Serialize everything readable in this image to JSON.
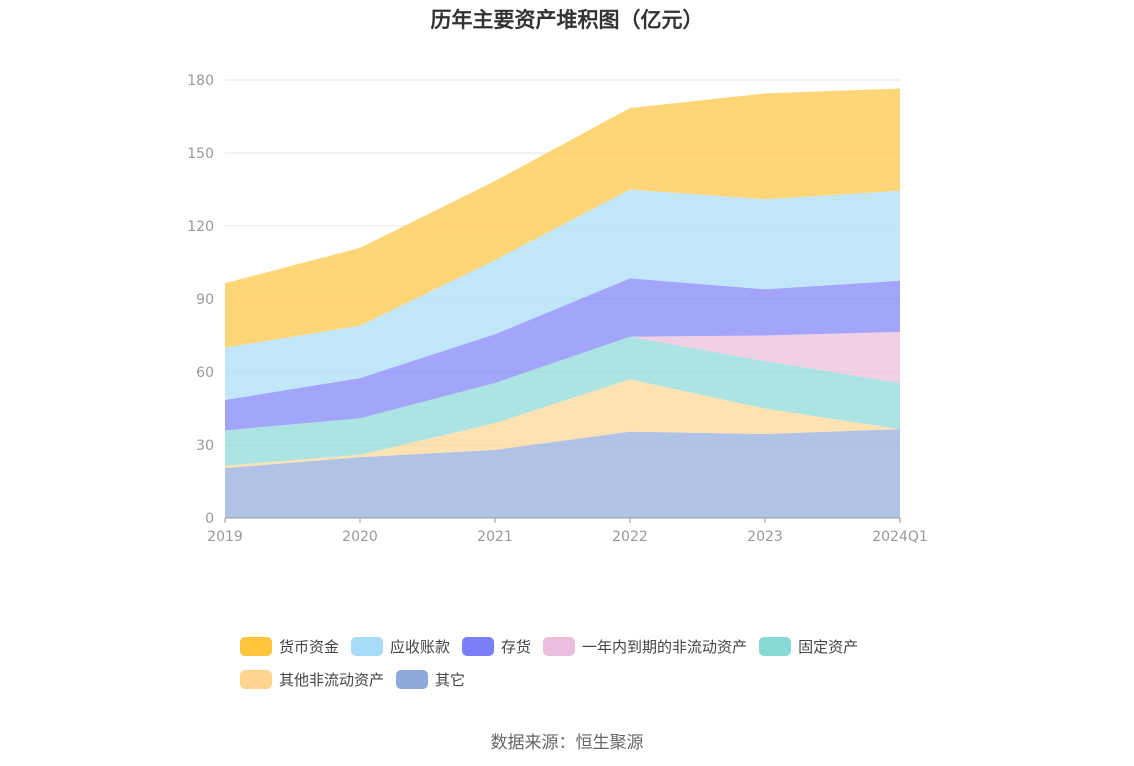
{
  "chart_data": {
    "type": "area",
    "stacked": true,
    "title": "历年主要资产堆积图（亿元）",
    "categories": [
      "2019",
      "2020",
      "2021",
      "2022",
      "2023",
      "2024Q1"
    ],
    "ylim": [
      0,
      180
    ],
    "yticks": [
      "0",
      "30",
      "60",
      "90",
      "120",
      "150",
      "180"
    ],
    "grid": true,
    "legend_position": "bottom",
    "series": [
      {
        "name": "其它",
        "color": "#8eaadb",
        "values": [
          20.5,
          25,
          28,
          35.5,
          34.5,
          36.5
        ]
      },
      {
        "name": "其他非流动资产",
        "color": "#ffd591",
        "values": [
          1,
          1,
          11,
          21.5,
          10.5,
          0
        ]
      },
      {
        "name": "固定资产",
        "color": "#87d9d6",
        "values": [
          14.5,
          15,
          16.5,
          17.5,
          19.5,
          19
        ]
      },
      {
        "name": "一年内到期的非流动资产",
        "color": "#ebbcdb",
        "values": [
          0,
          0,
          0,
          0,
          10.5,
          21
        ]
      },
      {
        "name": "存货",
        "color": "#7b7ff7",
        "values": [
          12.5,
          16.5,
          20,
          24,
          19,
          21
        ]
      },
      {
        "name": "应收账款",
        "color": "#a6dcf8",
        "values": [
          21.5,
          21.5,
          30.5,
          36.5,
          37,
          37
        ]
      },
      {
        "name": "货币资金",
        "color": "#ffc53d",
        "values": [
          26.5,
          32,
          32.5,
          33.5,
          43.5,
          42
        ]
      }
    ]
  },
  "legend": {
    "items": [
      {
        "label": "货币资金",
        "color": "#ffc53d"
      },
      {
        "label": "应收账款",
        "color": "#a6dcf8"
      },
      {
        "label": "存货",
        "color": "#7b7ff7"
      },
      {
        "label": "一年内到期的非流动资产",
        "color": "#ebbcdb"
      },
      {
        "label": "固定资产",
        "color": "#87d9d6"
      },
      {
        "label": "其他非流动资产",
        "color": "#ffd591"
      },
      {
        "label": "其它",
        "color": "#8eaadb"
      }
    ]
  },
  "footer": {
    "source": "数据来源：恒生聚源"
  }
}
